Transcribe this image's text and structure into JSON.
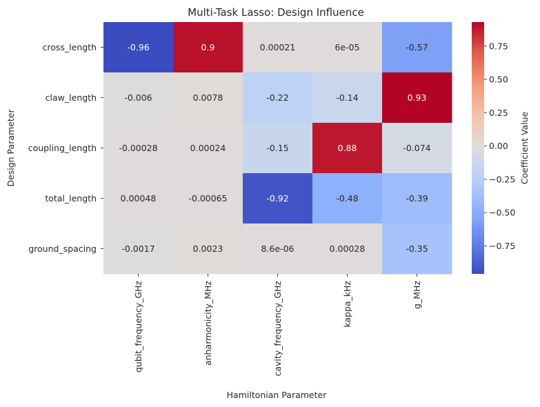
{
  "chart_data": {
    "type": "heatmap",
    "title": "Multi-Task Lasso: Design Influence",
    "xlabel": "Hamiltonian Parameter",
    "ylabel": "Design Parameter",
    "columns": [
      "qubit_frequency_GHz",
      "anharmonicity_MHz",
      "cavity_frequency_GHz",
      "kappa_kHz",
      "g_MHz"
    ],
    "rows": [
      "cross_length",
      "claw_length",
      "coupling_length",
      "total_length",
      "ground_spacing"
    ],
    "values": [
      [
        -0.96,
        0.9,
        0.00021,
        6e-05,
        -0.57
      ],
      [
        -0.006,
        0.0078,
        -0.22,
        -0.14,
        0.93
      ],
      [
        -0.00028,
        0.00024,
        -0.15,
        0.88,
        -0.074
      ],
      [
        0.00048,
        -0.00065,
        -0.92,
        -0.48,
        -0.39
      ],
      [
        -0.0017,
        0.0023,
        8.6e-06,
        0.00028,
        -0.35
      ]
    ],
    "annotations": [
      [
        "-0.96",
        "0.9",
        "0.00021",
        "6e-05",
        "-0.57"
      ],
      [
        "-0.006",
        "0.0078",
        "-0.22",
        "-0.14",
        "0.93"
      ],
      [
        "-0.00028",
        "0.00024",
        "-0.15",
        "0.88",
        "-0.074"
      ],
      [
        "0.00048",
        "-0.00065",
        "-0.92",
        "-0.48",
        "-0.39"
      ],
      [
        "-0.0017",
        "0.0023",
        "8.6e-06",
        "0.00028",
        "-0.35"
      ]
    ],
    "colormap": "coolwarm",
    "vmin": -0.96,
    "vmax": 0.93,
    "colorbar": {
      "label": "Coefficient Value",
      "ticks": [
        0.75,
        0.5,
        0.25,
        0.0,
        -0.25,
        -0.5,
        -0.75
      ],
      "tick_labels": [
        "0.75",
        "0.50",
        "0.25",
        "0.00",
        "−0.25",
        "−0.50",
        "−0.75"
      ]
    }
  }
}
